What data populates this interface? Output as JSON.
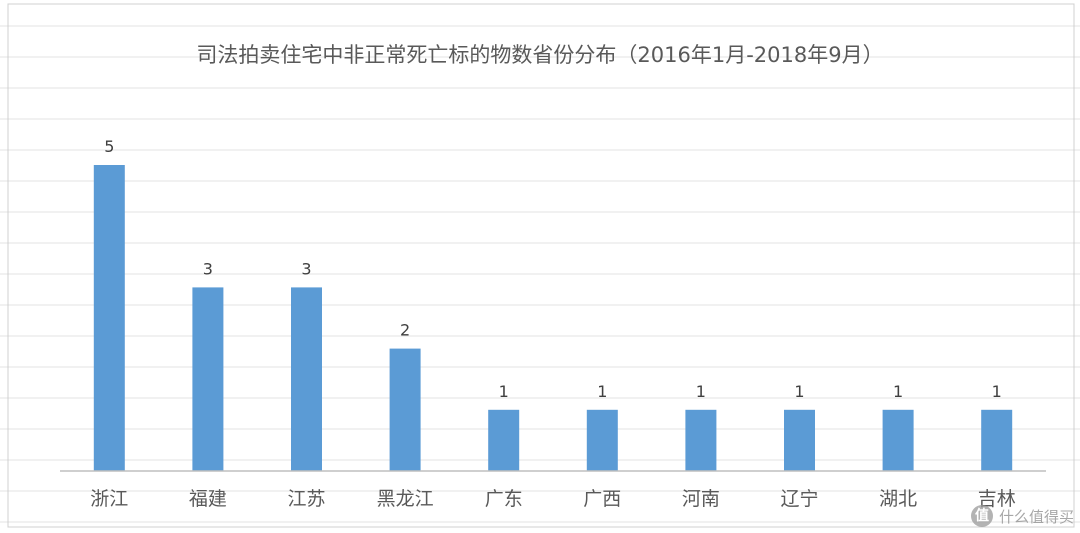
{
  "chart_data": {
    "type": "bar",
    "title": "司法拍卖住宅中非正常死亡标的物数省份分布（2016年1月-2018年9月）",
    "categories": [
      "浙江",
      "福建",
      "江苏",
      "黑龙江",
      "广东",
      "广西",
      "河南",
      "辽宁",
      "湖北",
      "吉林"
    ],
    "values": [
      5,
      3,
      3,
      2,
      1,
      1,
      1,
      1,
      1,
      1
    ],
    "data_labels": true,
    "xlabel": "",
    "ylabel": "",
    "ylim": [
      0,
      5
    ],
    "grid": false,
    "legend": "none",
    "bar_color": "#5b9bd5"
  },
  "watermark": {
    "icon": "值",
    "text": "什么值得买"
  }
}
